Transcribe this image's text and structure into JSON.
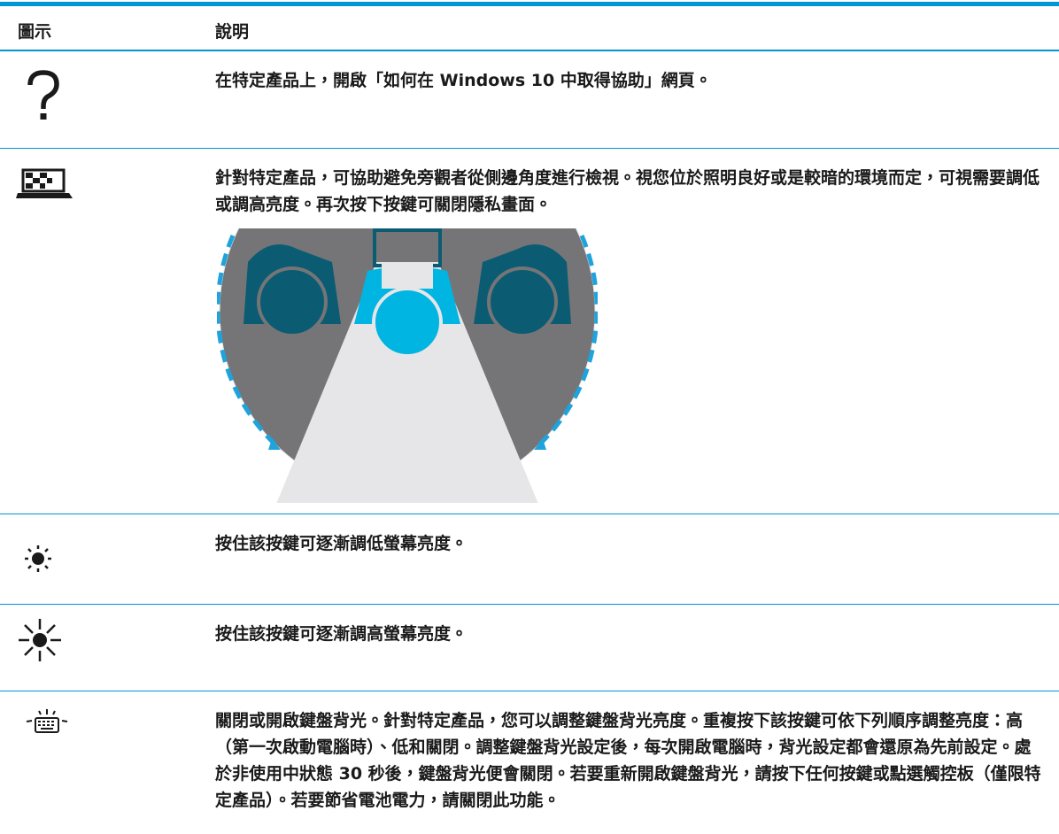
{
  "header": {
    "icon_column": "圖示",
    "description_column": "說明"
  },
  "rows": [
    {
      "description": "在特定產品上，開啟「如何在 Windows 10 中取得協助」網頁。"
    },
    {
      "description": "針對特定產品，可協助避免旁觀者從側邊角度進行檢視。視您位於照明良好或是較暗的環境而定，可視需要調低或調高亮度。再次按下按鍵可關閉隱私畫面。"
    },
    {
      "description": "按住該按鍵可逐漸調低螢幕亮度。"
    },
    {
      "description": "按住該按鍵可逐漸調高螢幕亮度。"
    },
    {
      "description": "關閉或開啟鍵盤背光。針對特定產品，您可以調整鍵盤背光亮度。重複按下該按鍵可依下列順序調整亮度：高（第一次啟動電腦時）、低和關閉。調整鍵盤背光設定後，每次開啟電腦時，背光設定都會還原為先前設定。處於非使用中狀態 30 秒後，鍵盤背光便會關閉。若要重新開啟鍵盤背光，請按下任何按鍵或點選觸控板（僅限特定產品）。若要節省電池電力，請關閉此功能。"
    }
  ]
}
